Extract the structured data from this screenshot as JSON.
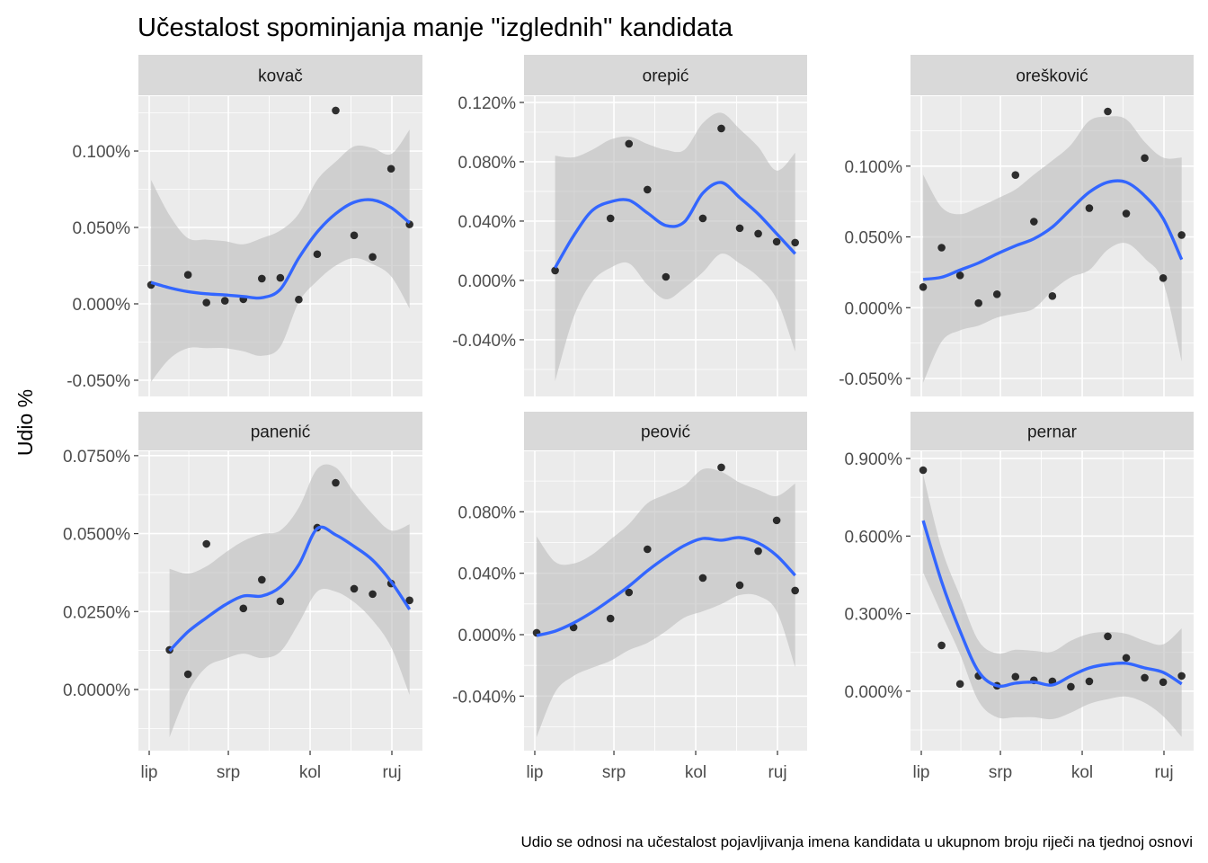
{
  "chart_data": {
    "type": "scatter",
    "subtype": "faceted scatter with loess smooth and confidence band",
    "title": "Učestalost spominjanja manje \"izglednih\" kandidata",
    "ylabel": "Udio %",
    "xlabel": "",
    "caption": "Udio se odnosi na učestalost pojavljivanja imena kandidata u ukupnom broju riječi na tjednoj osnovi",
    "x_unit": "days since 1 June (weekly observations)",
    "x_ticks": [
      {
        "label": "lip",
        "value": 0
      },
      {
        "label": "srp",
        "value": 30
      },
      {
        "label": "kol",
        "value": 61
      },
      {
        "label": "ruj",
        "value": 92
      }
    ],
    "xlim": [
      -3,
      104
    ],
    "grid": true,
    "colors": {
      "panel_bg": "#ebebeb",
      "strip_bg": "#d9d9d9",
      "grid": "#ffffff",
      "point": "#000000",
      "smooth": "#3366ff",
      "ribbon": "#bdbdbd"
    },
    "panels": [
      {
        "name": "kovač",
        "ylim": [
          -0.0606,
          0.1359
        ],
        "y_ticks": [
          {
            "label": "-0.050%",
            "value": -0.05
          },
          {
            "label": "0.000%",
            "value": 0
          },
          {
            "label": "0.050%",
            "value": 0.05
          },
          {
            "label": "0.100%",
            "value": 0.1
          }
        ],
        "y_minor": [
          -0.025,
          0.025,
          0.075,
          0.125
        ],
        "points": {
          "x": [
            0.7,
            14.7,
            21.7,
            28.7,
            35.7,
            42.7,
            49.7,
            56.7,
            63.7,
            70.7,
            77.7,
            84.7,
            91.7,
            98.7
          ],
          "y": [
            0.0124,
            0.019,
            0.0008,
            0.002,
            0.003,
            0.0165,
            0.017,
            0.0028,
            0.0325,
            0.1265,
            0.0448,
            0.0307,
            0.0884,
            0.052
          ]
        },
        "smooth": {
          "x": [
            0.7,
            7.7,
            14.7,
            21.7,
            28.7,
            35.7,
            42.7,
            49.7,
            56.7,
            63.7,
            70.7,
            77.7,
            84.7,
            91.7,
            98.7
          ],
          "y": [
            0.014,
            0.0105,
            0.008,
            0.0066,
            0.0058,
            0.0048,
            0.004,
            0.0095,
            0.03,
            0.047,
            0.059,
            0.0665,
            0.068,
            0.063,
            0.053
          ],
          "lower": [
            -0.051,
            -0.036,
            -0.029,
            -0.029,
            -0.029,
            -0.031,
            -0.034,
            -0.028,
            0.001,
            0.015,
            0.025,
            0.03,
            0.026,
            0.018,
            -0.003
          ],
          "upper": [
            0.081,
            0.058,
            0.043,
            0.042,
            0.041,
            0.039,
            0.043,
            0.048,
            0.059,
            0.081,
            0.093,
            0.103,
            0.102,
            0.098,
            0.114
          ]
        }
      },
      {
        "name": "orepić",
        "ylim": [
          -0.0782,
          0.1242
        ],
        "y_ticks": [
          {
            "label": "-0.040%",
            "value": -0.04
          },
          {
            "label": "0.000%",
            "value": 0
          },
          {
            "label": "0.040%",
            "value": 0.04
          },
          {
            "label": "0.080%",
            "value": 0.08
          },
          {
            "label": "0.120%",
            "value": 0.12
          }
        ],
        "y_minor": [
          -0.06,
          -0.02,
          0.02,
          0.06,
          0.1
        ],
        "points": {
          "x": [
            7.7,
            28.7,
            35.7,
            42.7,
            49.7,
            63.7,
            70.7,
            77.7,
            84.7,
            91.7,
            98.7
          ],
          "y": [
            0.0067,
            0.0418,
            0.0921,
            0.0612,
            0.0024,
            0.0418,
            0.1024,
            0.0352,
            0.0315,
            0.0261,
            0.0255
          ]
        },
        "smooth": {
          "x": [
            7.7,
            14.7,
            21.7,
            28.7,
            35.7,
            42.7,
            49.7,
            56.7,
            63.7,
            70.7,
            77.7,
            84.7,
            91.7,
            98.7
          ],
          "y": [
            0.0085,
            0.03,
            0.047,
            0.053,
            0.054,
            0.0455,
            0.037,
            0.0394,
            0.0588,
            0.066,
            0.0558,
            0.0448,
            0.0315,
            0.018
          ],
          "lower": [
            -0.068,
            -0.025,
            -0.001,
            0.0085,
            0.0115,
            -0.003,
            -0.0127,
            -0.005,
            0.0055,
            0.018,
            0.0115,
            0.0024,
            -0.0127,
            -0.048
          ],
          "upper": [
            0.084,
            0.083,
            0.088,
            0.095,
            0.097,
            0.092,
            0.088,
            0.088,
            0.106,
            0.113,
            0.102,
            0.09,
            0.074,
            0.086
          ]
        }
      },
      {
        "name": "orešković",
        "ylim": [
          -0.0627,
          0.1494
        ],
        "y_ticks": [
          {
            "label": "-0.050%",
            "value": -0.05
          },
          {
            "label": "0.000%",
            "value": 0
          },
          {
            "label": "0.050%",
            "value": 0.05
          },
          {
            "label": "0.100%",
            "value": 0.1
          }
        ],
        "y_minor": [
          -0.025,
          0.025,
          0.075,
          0.125
        ],
        "points": {
          "x": [
            0.7,
            7.7,
            14.7,
            21.7,
            28.7,
            35.7,
            42.7,
            49.7,
            63.7,
            70.7,
            77.7,
            84.7,
            91.7,
            98.7
          ],
          "y": [
            0.0146,
            0.0424,
            0.0228,
            0.0032,
            0.0095,
            0.0937,
            0.0608,
            0.0082,
            0.0703,
            0.1386,
            0.0665,
            0.1057,
            0.0209,
            0.0513
          ]
        },
        "smooth": {
          "x": [
            0.7,
            7.7,
            14.7,
            21.7,
            28.7,
            35.7,
            42.7,
            49.7,
            56.7,
            63.7,
            70.7,
            77.7,
            84.7,
            91.7,
            98.7
          ],
          "y": [
            0.02,
            0.0215,
            0.0266,
            0.0316,
            0.038,
            0.0437,
            0.0487,
            0.057,
            0.0696,
            0.0816,
            0.0886,
            0.0886,
            0.079,
            0.063,
            0.034
          ],
          "lower": [
            -0.053,
            -0.024,
            -0.016,
            -0.0127,
            -0.007,
            -0.004,
            -0.0006,
            0.012,
            0.0215,
            0.0266,
            0.041,
            0.0456,
            0.0348,
            0.018,
            -0.038
          ],
          "upper": [
            0.094,
            0.071,
            0.066,
            0.071,
            0.077,
            0.0835,
            0.094,
            0.104,
            0.115,
            0.132,
            0.135,
            0.133,
            0.117,
            0.106,
            0.106
          ]
        }
      },
      {
        "name": "panenić",
        "ylim": [
          -0.0196,
          0.0764
        ],
        "y_ticks": [
          {
            "label": "0.0000%",
            "value": 0
          },
          {
            "label": "0.0250%",
            "value": 0.025
          },
          {
            "label": "0.0500%",
            "value": 0.05
          },
          {
            "label": "0.0750%",
            "value": 0.075
          }
        ],
        "y_minor": [
          -0.0125,
          0.0125,
          0.0375,
          0.0625
        ],
        "points": {
          "x": [
            7.7,
            14.7,
            21.7,
            35.7,
            42.7,
            49.7,
            63.7,
            70.7,
            77.7,
            84.7,
            91.7,
            98.7
          ],
          "y": [
            0.0127,
            0.0049,
            0.0467,
            0.026,
            0.0352,
            0.0283,
            0.0519,
            0.0663,
            0.0323,
            0.0306,
            0.034,
            0.0286
          ]
        },
        "smooth": {
          "x": [
            7.7,
            14.7,
            21.7,
            28.7,
            35.7,
            42.7,
            49.7,
            56.7,
            63.7,
            70.7,
            77.7,
            84.7,
            91.7,
            98.7
          ],
          "y": [
            0.0124,
            0.0185,
            0.023,
            0.0271,
            0.03,
            0.03,
            0.0329,
            0.04,
            0.0516,
            0.0496,
            0.0459,
            0.0415,
            0.0346,
            0.0257
          ],
          "lower": [
            -0.0153,
            -0.0009,
            0.0072,
            0.0098,
            0.0115,
            0.0101,
            0.0121,
            0.0213,
            0.0314,
            0.0314,
            0.028,
            0.0222,
            0.0136,
            -0.0017
          ],
          "upper": [
            0.0387,
            0.0372,
            0.0395,
            0.0438,
            0.0476,
            0.0499,
            0.051,
            0.0583,
            0.0707,
            0.0712,
            0.0632,
            0.0562,
            0.051,
            0.053
          ]
        }
      },
      {
        "name": "peović",
        "ylim": [
          -0.0755,
          0.1194
        ],
        "y_ticks": [
          {
            "label": "-0.040%",
            "value": -0.04
          },
          {
            "label": "0.000%",
            "value": 0
          },
          {
            "label": "0.040%",
            "value": 0.04
          },
          {
            "label": "0.080%",
            "value": 0.08
          }
        ],
        "y_minor": [
          -0.06,
          -0.02,
          0.02,
          0.06,
          0.1
        ],
        "points": {
          "x": [
            0.7,
            14.7,
            28.7,
            35.7,
            42.7,
            63.7,
            70.7,
            77.7,
            84.7,
            91.7,
            98.7
          ],
          "y": [
            0.0012,
            0.0047,
            0.0105,
            0.0275,
            0.0556,
            0.0369,
            0.1089,
            0.0322,
            0.0544,
            0.0744,
            0.0287
          ]
        },
        "smooth": {
          "x": [
            0.7,
            7.7,
            14.7,
            21.7,
            28.7,
            35.7,
            42.7,
            49.7,
            56.7,
            63.7,
            70.7,
            77.7,
            84.7,
            91.7,
            98.7
          ],
          "y": [
            -0.0006,
            0.0023,
            0.0076,
            0.0146,
            0.0228,
            0.0316,
            0.0416,
            0.0504,
            0.058,
            0.0626,
            0.0615,
            0.0632,
            0.0597,
            0.0515,
            0.0386
          ],
          "lower": [
            -0.0667,
            -0.0375,
            -0.0269,
            -0.0216,
            -0.017,
            -0.01,
            -0.0053,
            0.0023,
            0.0111,
            0.0152,
            0.0199,
            0.0258,
            0.0252,
            0.0152,
            -0.021
          ],
          "upper": [
            0.064,
            0.0474,
            0.0463,
            0.0521,
            0.062,
            0.072,
            0.0855,
            0.0913,
            0.097,
            0.1077,
            0.106,
            0.099,
            0.0943,
            0.0902,
            0.0984
          ]
        }
      },
      {
        "name": "pernar",
        "ylim": [
          -0.23,
          0.928
        ],
        "y_ticks": [
          {
            "label": "0.000%",
            "value": 0
          },
          {
            "label": "0.300%",
            "value": 0.3
          },
          {
            "label": "0.600%",
            "value": 0.6
          },
          {
            "label": "0.900%",
            "value": 0.9
          }
        ],
        "y_minor": [
          -0.15,
          0.15,
          0.45,
          0.75
        ],
        "points": {
          "x": [
            0.7,
            7.7,
            14.7,
            21.7,
            28.7,
            35.7,
            42.7,
            49.7,
            56.7,
            63.7,
            70.7,
            77.7,
            84.7,
            91.7,
            98.7
          ],
          "y": [
            0.855,
            0.177,
            0.028,
            0.059,
            0.021,
            0.056,
            0.042,
            0.038,
            0.017,
            0.038,
            0.212,
            0.129,
            0.052,
            0.035,
            0.059
          ]
        },
        "smooth": {
          "x": [
            0.7,
            7.7,
            14.7,
            21.7,
            28.7,
            35.7,
            42.7,
            49.7,
            56.7,
            63.7,
            70.7,
            77.7,
            84.7,
            91.7,
            98.7
          ],
          "y": [
            0.66,
            0.424,
            0.233,
            0.076,
            0.021,
            0.031,
            0.035,
            0.024,
            0.059,
            0.09,
            0.104,
            0.108,
            0.09,
            0.073,
            0.028
          ],
          "lower": [
            0.459,
            0.299,
            0.143,
            -0.038,
            -0.101,
            -0.101,
            -0.101,
            -0.108,
            -0.083,
            -0.049,
            -0.031,
            -0.021,
            -0.045,
            -0.097,
            -0.177
          ],
          "upper": [
            0.838,
            0.553,
            0.368,
            0.195,
            0.146,
            0.16,
            0.156,
            0.153,
            0.195,
            0.222,
            0.229,
            0.222,
            0.195,
            0.181,
            0.243
          ]
        }
      }
    ]
  }
}
